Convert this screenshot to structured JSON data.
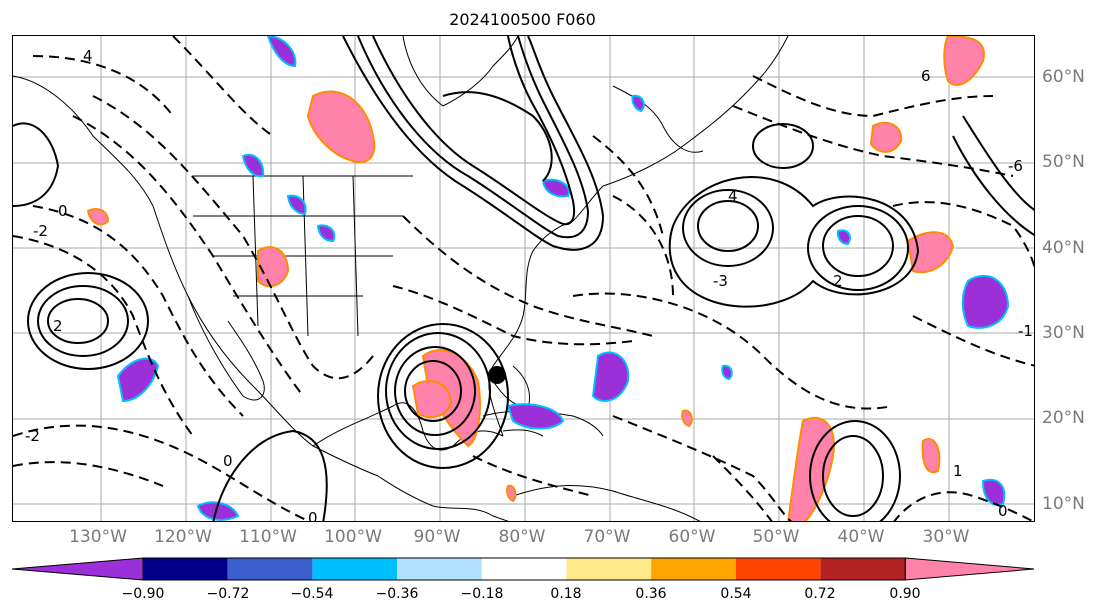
{
  "title": "2024100500 F060",
  "map": {
    "lon_labels": [
      "130°W",
      "120°W",
      "110°W",
      "100°W",
      "90°W",
      "80°W",
      "70°W",
      "60°W",
      "50°W",
      "40°W",
      "30°W"
    ],
    "lat_labels": [
      "60°N",
      "50°N",
      "40°N",
      "30°N",
      "20°N",
      "10°N"
    ],
    "contour_labels": [
      "4",
      "2",
      "0",
      "-2",
      "-4",
      "6",
      "-6",
      "-3",
      "-1",
      "1"
    ],
    "storm_marker": "black-dot"
  },
  "colorbar": {
    "colors": [
      "#9b30d9",
      "#00008b",
      "#3a5fcd",
      "#00bfff",
      "#b0e2ff",
      "#ffffff",
      "#ffe88a",
      "#ffa500",
      "#ff4500",
      "#b22222",
      "#ff82ab"
    ],
    "ticks": [
      "−0.90",
      "−0.72",
      "−0.54",
      "−0.36",
      "−0.18",
      "0.18",
      "0.36",
      "0.54",
      "0.72",
      "0.90"
    ]
  }
}
